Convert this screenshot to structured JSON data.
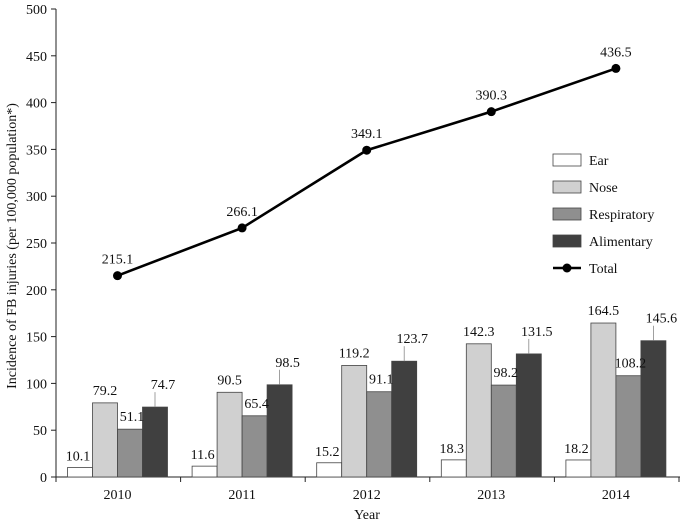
{
  "chart_data": {
    "type": "bar",
    "xlabel": "Year",
    "ylabel": "Incidence of FB injuries (per 100,000 population*)",
    "ylim": [
      0,
      500
    ],
    "yticks": [
      0,
      50,
      100,
      150,
      200,
      250,
      300,
      350,
      400,
      450,
      500
    ],
    "categories": [
      "2010",
      "2011",
      "2012",
      "2013",
      "2014"
    ],
    "grid": false,
    "legend_position": "right",
    "series": [
      {
        "name": "Ear",
        "kind": "bar",
        "color": "#ffffff",
        "values": [
          10.1,
          11.6,
          15.2,
          18.3,
          18.2
        ]
      },
      {
        "name": "Nose",
        "kind": "bar",
        "color": "#d0d0d0",
        "values": [
          79.2,
          90.5,
          119.2,
          142.3,
          164.5
        ]
      },
      {
        "name": "Respiratory",
        "kind": "bar",
        "color": "#8f8f8f",
        "values": [
          51.1,
          65.4,
          91.1,
          98.2,
          108.2
        ]
      },
      {
        "name": "Alimentary",
        "kind": "bar",
        "color": "#404040",
        "values": [
          74.7,
          98.5,
          123.7,
          131.5,
          145.6
        ]
      },
      {
        "name": "Total",
        "kind": "line",
        "color": "#000000",
        "values": [
          215.1,
          266.1,
          349.1,
          390.3,
          436.5
        ]
      }
    ],
    "value_labels": {
      "Ear": [
        "10.1",
        "11.6",
        "15.2",
        "18.3",
        "18.2"
      ],
      "Nose": [
        "79.2",
        "90.5",
        "119.2",
        "142.3",
        "164.5"
      ],
      "Respiratory": [
        "51.1",
        "65.4",
        "91.1",
        "98.2",
        "108.2"
      ],
      "Alimentary": [
        "74.7",
        "98.5",
        "123.7",
        "131.5",
        "145.6"
      ],
      "Total": [
        "215.1",
        "266.1",
        "349.1",
        "390.3",
        "436.5"
      ]
    }
  }
}
